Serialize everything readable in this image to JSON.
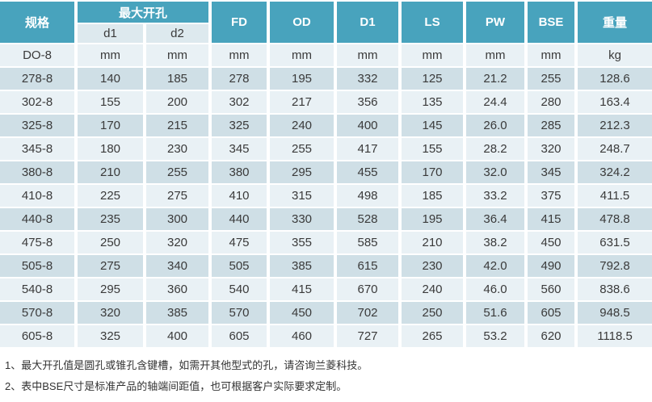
{
  "colors": {
    "header_teal": "#48a3bd",
    "subheader_bg": "#dde9ee",
    "row_light": "#e9f1f5",
    "row_dark": "#cfdfe6",
    "text_dark": "#3a3a3a"
  },
  "table": {
    "header": {
      "spec": "规格",
      "max_bore_group": "最大开孔",
      "d1": "d1",
      "d2": "d2",
      "fd": "FD",
      "od": "OD",
      "d1_cap": "D1",
      "ls": "LS",
      "pw": "PW",
      "bse": "BSE",
      "weight": "重量"
    },
    "units_row": {
      "spec": "DO-8",
      "values": [
        "mm",
        "mm",
        "mm",
        "mm",
        "mm",
        "mm",
        "mm",
        "mm",
        "kg"
      ]
    },
    "rows": [
      {
        "spec": "278-8",
        "values": [
          "140",
          "185",
          "278",
          "195",
          "332",
          "125",
          "21.2",
          "255",
          "128.6"
        ]
      },
      {
        "spec": "302-8",
        "values": [
          "155",
          "200",
          "302",
          "217",
          "356",
          "135",
          "24.4",
          "280",
          "163.4"
        ]
      },
      {
        "spec": "325-8",
        "values": [
          "170",
          "215",
          "325",
          "240",
          "400",
          "145",
          "26.0",
          "285",
          "212.3"
        ]
      },
      {
        "spec": "345-8",
        "values": [
          "180",
          "230",
          "345",
          "255",
          "417",
          "155",
          "28.2",
          "320",
          "248.7"
        ]
      },
      {
        "spec": "380-8",
        "values": [
          "210",
          "255",
          "380",
          "295",
          "455",
          "170",
          "32.0",
          "345",
          "324.2"
        ]
      },
      {
        "spec": "410-8",
        "values": [
          "225",
          "275",
          "410",
          "315",
          "498",
          "185",
          "33.2",
          "375",
          "411.5"
        ]
      },
      {
        "spec": "440-8",
        "values": [
          "235",
          "300",
          "440",
          "330",
          "528",
          "195",
          "36.4",
          "415",
          "478.8"
        ]
      },
      {
        "spec": "475-8",
        "values": [
          "250",
          "320",
          "475",
          "355",
          "585",
          "210",
          "38.2",
          "450",
          "631.5"
        ]
      },
      {
        "spec": "505-8",
        "values": [
          "275",
          "340",
          "505",
          "385",
          "615",
          "230",
          "42.0",
          "490",
          "792.8"
        ]
      },
      {
        "spec": "540-8",
        "values": [
          "295",
          "360",
          "540",
          "415",
          "670",
          "240",
          "46.0",
          "560",
          "838.6"
        ]
      },
      {
        "spec": "570-8",
        "values": [
          "320",
          "385",
          "570",
          "450",
          "702",
          "250",
          "51.6",
          "605",
          "948.5"
        ]
      },
      {
        "spec": "605-8",
        "values": [
          "325",
          "400",
          "605",
          "460",
          "727",
          "265",
          "53.2",
          "620",
          "1118.5"
        ]
      }
    ]
  },
  "notes": [
    "1、最大开孔值是圆孔或锥孔含键槽，如需开其他型式的孔，请咨询兰菱科技。",
    "2、表中BSE尺寸是标准产品的轴端间距值，也可根据客户实际要求定制。"
  ]
}
